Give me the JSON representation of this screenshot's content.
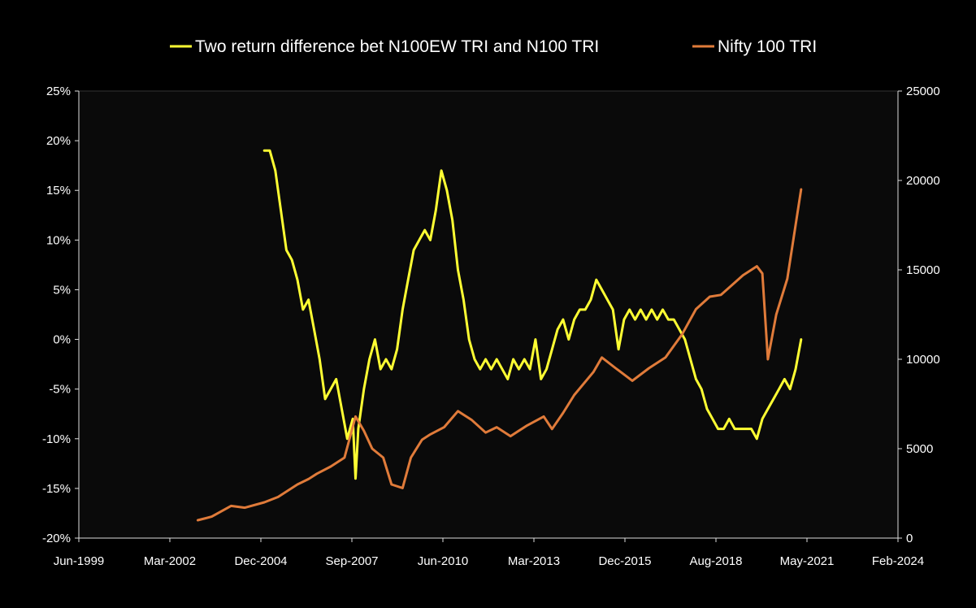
{
  "chart_data": {
    "type": "line",
    "title": "",
    "xlabel": "",
    "ylabel": "",
    "legend_placement": "top-center",
    "grid": false,
    "x_tick_labels": [
      "Jun-1999",
      "Mar-2002",
      "Dec-2004",
      "Sep-2007",
      "Jun-2010",
      "Mar-2013",
      "Dec-2015",
      "Aug-2018",
      "May-2021",
      "Feb-2024"
    ],
    "xlim": [
      "1999-06",
      "2024-02"
    ],
    "y_left": {
      "lim": [
        -0.2,
        0.25
      ],
      "tick_labels": [
        "-20%",
        "-15%",
        "-10%",
        "-5%",
        "0%",
        "5%",
        "10%",
        "15%",
        "20%",
        "25%"
      ]
    },
    "y_right": {
      "lim": [
        0,
        25000
      ],
      "tick_labels": [
        "0",
        "5000",
        "10000",
        "15000",
        "20000",
        "25000"
      ]
    },
    "series": [
      {
        "name": "Two return difference bet N100EW TRI and N100 TRI",
        "axis": "left",
        "color": "#ffff33",
        "x": [
          "2005-01",
          "2005-03",
          "2005-05",
          "2005-07",
          "2005-09",
          "2005-11",
          "2006-01",
          "2006-03",
          "2006-05",
          "2006-07",
          "2006-09",
          "2006-11",
          "2007-01",
          "2007-03",
          "2007-05",
          "2007-07",
          "2007-09",
          "2007-10",
          "2007-11",
          "2008-01",
          "2008-03",
          "2008-05",
          "2008-07",
          "2008-09",
          "2008-11",
          "2009-01",
          "2009-03",
          "2009-05",
          "2009-07",
          "2009-09",
          "2009-11",
          "2010-01",
          "2010-03",
          "2010-05",
          "2010-07",
          "2010-09",
          "2010-11",
          "2011-01",
          "2011-03",
          "2011-05",
          "2011-07",
          "2011-09",
          "2011-11",
          "2012-01",
          "2012-03",
          "2012-05",
          "2012-07",
          "2012-09",
          "2012-11",
          "2013-01",
          "2013-03",
          "2013-05",
          "2013-07",
          "2013-09",
          "2013-11",
          "2014-01",
          "2014-03",
          "2014-05",
          "2014-07",
          "2014-09",
          "2014-11",
          "2015-01",
          "2015-03",
          "2015-05",
          "2015-07",
          "2015-09",
          "2015-11",
          "2016-01",
          "2016-03",
          "2016-05",
          "2016-07",
          "2016-09",
          "2016-11",
          "2017-01",
          "2017-03",
          "2017-05",
          "2017-07",
          "2017-09",
          "2017-11",
          "2018-01",
          "2018-03",
          "2018-05",
          "2018-07",
          "2018-09",
          "2018-11",
          "2019-01",
          "2019-03",
          "2019-05",
          "2019-07",
          "2019-09",
          "2019-11",
          "2020-01",
          "2020-03",
          "2020-05",
          "2020-07",
          "2020-09",
          "2020-11",
          "2021-01",
          "2021-03"
        ],
        "values": [
          0.19,
          0.19,
          0.17,
          0.13,
          0.09,
          0.08,
          0.06,
          0.03,
          0.04,
          0.01,
          -0.02,
          -0.06,
          -0.05,
          -0.04,
          -0.07,
          -0.1,
          -0.08,
          -0.14,
          -0.09,
          -0.05,
          -0.02,
          0.0,
          -0.03,
          -0.02,
          -0.03,
          -0.01,
          0.03,
          0.06,
          0.09,
          0.1,
          0.11,
          0.1,
          0.13,
          0.17,
          0.15,
          0.12,
          0.07,
          0.04,
          0.0,
          -0.02,
          -0.03,
          -0.02,
          -0.03,
          -0.02,
          -0.03,
          -0.04,
          -0.02,
          -0.03,
          -0.02,
          -0.03,
          0.0,
          -0.04,
          -0.03,
          -0.01,
          0.01,
          0.02,
          0.0,
          0.02,
          0.03,
          0.03,
          0.04,
          0.06,
          0.05,
          0.04,
          0.03,
          -0.01,
          0.02,
          0.03,
          0.02,
          0.03,
          0.02,
          0.03,
          0.02,
          0.03,
          0.02,
          0.02,
          0.01,
          0.0,
          -0.02,
          -0.04,
          -0.05,
          -0.07,
          -0.08,
          -0.09,
          -0.09,
          -0.08,
          -0.09,
          -0.09,
          -0.09,
          -0.09,
          -0.1,
          -0.08,
          -0.07,
          -0.06,
          -0.05,
          -0.04,
          -0.05,
          -0.03,
          -0.0
        ]
      },
      {
        "name": "Nifty 100 TRI",
        "axis": "right",
        "color": "#e07b3a",
        "x": [
          "2003-01",
          "2003-06",
          "2004-01",
          "2004-06",
          "2005-01",
          "2005-06",
          "2006-01",
          "2006-05",
          "2006-08",
          "2007-01",
          "2007-06",
          "2007-10",
          "2008-01",
          "2008-04",
          "2008-08",
          "2008-11",
          "2009-03",
          "2009-06",
          "2009-10",
          "2010-01",
          "2010-06",
          "2010-11",
          "2011-04",
          "2011-09",
          "2012-01",
          "2012-06",
          "2012-12",
          "2013-06",
          "2013-09",
          "2014-01",
          "2014-05",
          "2014-12",
          "2015-03",
          "2015-08",
          "2016-02",
          "2016-08",
          "2017-02",
          "2017-08",
          "2018-01",
          "2018-06",
          "2018-10",
          "2019-06",
          "2019-11",
          "2020-01",
          "2020-03",
          "2020-06",
          "2020-10",
          "2021-01",
          "2021-03"
        ],
        "values": [
          1000,
          1200,
          1800,
          1700,
          2000,
          2300,
          3000,
          3300,
          3600,
          4000,
          4500,
          6800,
          6000,
          5000,
          4500,
          3000,
          2800,
          4500,
          5500,
          5800,
          6200,
          7100,
          6600,
          5900,
          6200,
          5700,
          6300,
          6800,
          6100,
          7000,
          8000,
          9300,
          10100,
          9500,
          8800,
          9500,
          10100,
          11400,
          12800,
          13500,
          13600,
          14700,
          15200,
          14800,
          10000,
          12500,
          14500,
          17500,
          19500
        ]
      }
    ]
  }
}
